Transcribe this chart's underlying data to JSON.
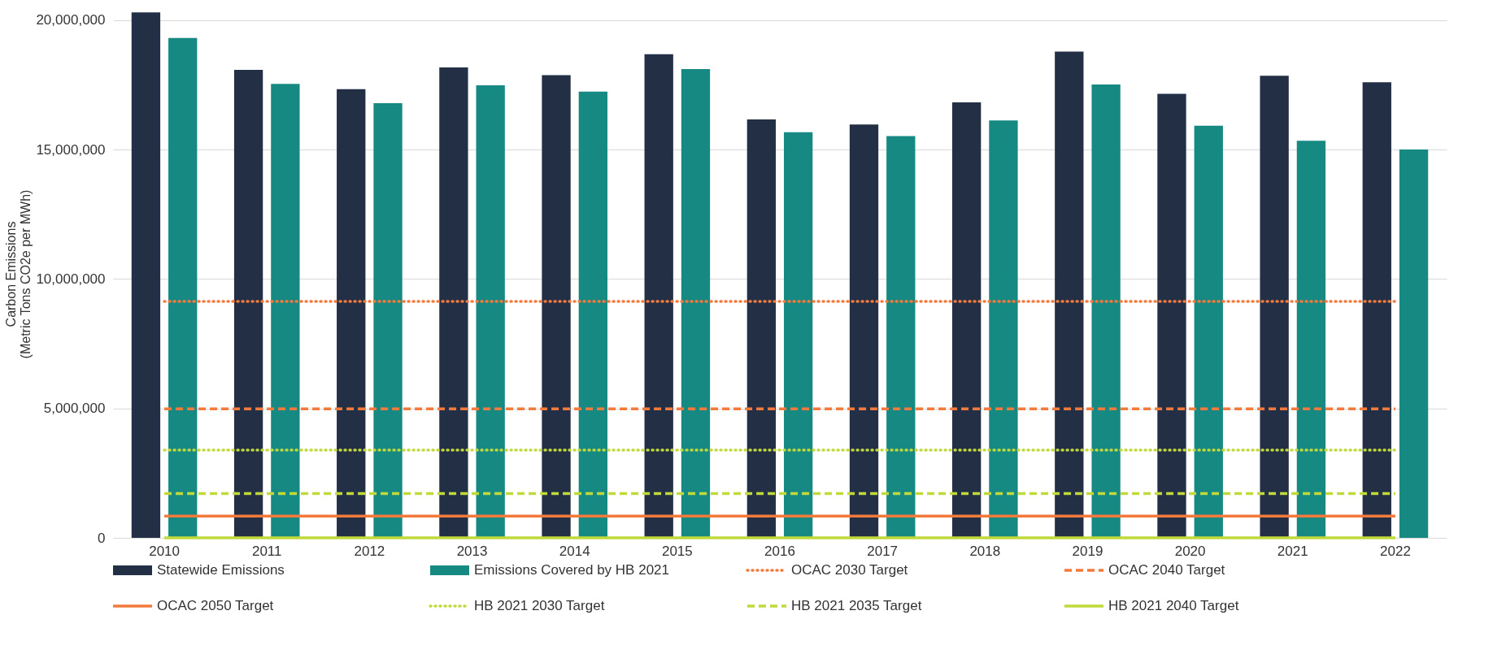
{
  "chart_data": {
    "type": "bar",
    "categories": [
      "2010",
      "2011",
      "2012",
      "2013",
      "2014",
      "2015",
      "2016",
      "2017",
      "2018",
      "2019",
      "2020",
      "2021",
      "2022"
    ],
    "ylabel": "Carbon Emissions\n(Metric Tons CO2e per MWh)",
    "ylim": [
      0,
      20400000
    ],
    "yticks": [
      0,
      {
        "value": 5000000,
        "label": "5,000,000"
      },
      {
        "value": 10000000,
        "label": "10,000,000"
      },
      {
        "value": 15000000,
        "label": "15,000,000"
      },
      {
        "value": 20000000,
        "label": "20,000,000"
      }
    ],
    "grid": "y",
    "legend": "bottom",
    "series": [
      {
        "name": "Statewide Emissions",
        "color": "#222f45",
        "values": [
          20300000,
          18080000,
          17330000,
          18170000,
          17870000,
          18680000,
          16160000,
          15970000,
          16820000,
          18780000,
          17150000,
          17850000,
          17600000
        ]
      },
      {
        "name": "Emissions Covered by HB 2021",
        "color": "#178983",
        "values": [
          19310000,
          17540000,
          16790000,
          17480000,
          17240000,
          18110000,
          15670000,
          15520000,
          16120000,
          17510000,
          15920000,
          15340000,
          15000000
        ]
      },
      {
        "name": "OCAC 2030 Target",
        "type": "line",
        "line_style": "dotted",
        "color": "#f47a3c",
        "values": [
          9130000,
          9130000,
          9130000,
          9130000,
          9130000,
          9130000,
          9130000,
          9130000,
          9130000,
          9130000,
          9130000,
          9130000,
          9130000
        ]
      },
      {
        "name": "OCAC 2040 Target",
        "type": "line",
        "line_style": "dashed",
        "color": "#f47a3c",
        "values": [
          4980000,
          4980000,
          4980000,
          4980000,
          4980000,
          4980000,
          4980000,
          4980000,
          4980000,
          4980000,
          4980000,
          4980000,
          4980000
        ]
      },
      {
        "name": "OCAC 2050 Target",
        "type": "line",
        "line_style": "solid",
        "color": "#f47a3c",
        "values": [
          840000,
          840000,
          840000,
          840000,
          840000,
          840000,
          840000,
          840000,
          840000,
          840000,
          840000,
          840000,
          840000
        ]
      },
      {
        "name": "HB 2021 2030 Target",
        "type": "line",
        "line_style": "dotted",
        "color": "#c2d93a",
        "values": [
          3390000,
          3390000,
          3390000,
          3390000,
          3390000,
          3390000,
          3390000,
          3390000,
          3390000,
          3390000,
          3390000,
          3390000,
          3390000
        ]
      },
      {
        "name": "HB 2021 2035 Target",
        "type": "line",
        "line_style": "dashed",
        "color": "#c2d93a",
        "values": [
          1710000,
          1710000,
          1710000,
          1710000,
          1710000,
          1710000,
          1710000,
          1710000,
          1710000,
          1710000,
          1710000,
          1710000,
          1710000
        ]
      },
      {
        "name": "HB 2021 2040 Target",
        "type": "line",
        "line_style": "solid",
        "color": "#c2d93a",
        "values": [
          0,
          0,
          0,
          0,
          0,
          0,
          0,
          0,
          0,
          0,
          0,
          0,
          0
        ]
      }
    ]
  }
}
